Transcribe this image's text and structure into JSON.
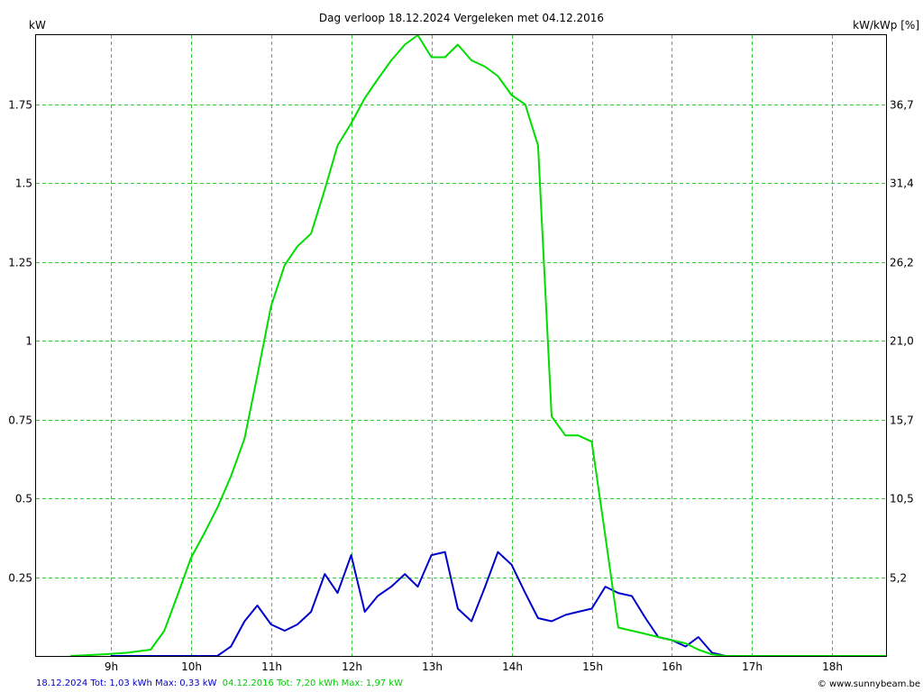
{
  "chart_data": {
    "type": "line",
    "title": "Dag  verloop 18.12.2024   Vergeleken met 04.12.2016",
    "ylabel_left": "kW",
    "ylabel_right": "kW/kWp [%]",
    "x_unit": "hour of day",
    "xlim": [
      8.07,
      18.67
    ],
    "ylim": [
      0,
      1.97
    ],
    "x_ticks": [
      9,
      10,
      11,
      12,
      13,
      14,
      15,
      16,
      17,
      18
    ],
    "x_tick_labels": [
      "9h",
      "10h",
      "11h",
      "12h",
      "13h",
      "14h",
      "15h",
      "16h",
      "17h",
      "18h"
    ],
    "y_ticks_left": [
      0.25,
      0.5,
      0.75,
      1,
      1.25,
      1.5,
      1.75
    ],
    "y_tick_labels_left": [
      "0.25",
      "0.5",
      "0.75",
      "1",
      "1.25",
      "1.5",
      "1.75"
    ],
    "y_tick_labels_right": [
      "5,2",
      "10,5",
      "15,7",
      "21,0",
      "26,2",
      "31,4",
      "36,7"
    ],
    "grid": true,
    "grid_color": "#33cc33",
    "series": [
      {
        "color": "#0000cc",
        "x": [
          9.0,
          9.17,
          9.33,
          9.5,
          9.67,
          9.83,
          10.0,
          10.17,
          10.33,
          10.5,
          10.67,
          10.83,
          11.0,
          11.17,
          11.33,
          11.5,
          11.67,
          11.83,
          12.0,
          12.17,
          12.33,
          12.5,
          12.67,
          12.83,
          13.0,
          13.17,
          13.33,
          13.5,
          13.67,
          13.83,
          14.0,
          14.17,
          14.33,
          14.5,
          14.67,
          14.83,
          15.0,
          15.17,
          15.33,
          15.5,
          15.67,
          15.83,
          16.0,
          16.17,
          16.33,
          16.5,
          16.67
        ],
        "y": [
          0,
          0,
          0,
          0,
          0,
          0,
          0,
          0,
          0,
          0.03,
          0.11,
          0.16,
          0.1,
          0.08,
          0.1,
          0.14,
          0.26,
          0.2,
          0.32,
          0.14,
          0.19,
          0.22,
          0.26,
          0.22,
          0.32,
          0.33,
          0.15,
          0.11,
          0.22,
          0.33,
          0.29,
          0.2,
          0.12,
          0.11,
          0.13,
          0.14,
          0.15,
          0.22,
          0.2,
          0.19,
          0.12,
          0.06,
          0.05,
          0.03,
          0.06,
          0.01,
          0
        ]
      },
      {
        "color": "#00dd00",
        "x": [
          8.5,
          8.9,
          9.2,
          9.5,
          9.67,
          9.83,
          10.0,
          10.17,
          10.33,
          10.5,
          10.67,
          10.83,
          11.0,
          11.17,
          11.33,
          11.5,
          11.67,
          11.83,
          12.0,
          12.17,
          12.33,
          12.5,
          12.67,
          12.83,
          13.0,
          13.17,
          13.33,
          13.5,
          13.67,
          13.83,
          14.0,
          14.17,
          14.33,
          14.5,
          14.67,
          14.83,
          15.0,
          15.17,
          15.33,
          15.5,
          15.67,
          15.83,
          16.0,
          16.17,
          16.33,
          16.5,
          16.67,
          17.0,
          18.67
        ],
        "y": [
          0,
          0.005,
          0.01,
          0.02,
          0.08,
          0.19,
          0.31,
          0.39,
          0.47,
          0.57,
          0.69,
          0.89,
          1.11,
          1.24,
          1.3,
          1.34,
          1.48,
          1.62,
          1.69,
          1.77,
          1.83,
          1.89,
          1.94,
          1.97,
          1.9,
          1.9,
          1.94,
          1.89,
          1.87,
          1.84,
          1.78,
          1.75,
          1.62,
          0.76,
          0.7,
          0.7,
          0.68,
          0.38,
          0.09,
          0.08,
          0.07,
          0.06,
          0.05,
          0.04,
          0.02,
          0.005,
          0,
          0,
          0
        ]
      }
    ],
    "footer_left": [
      {
        "text": "18.12.2024 Tot: 1,03 kWh Max: 0,33 kW",
        "color": "#0000cc"
      },
      {
        "text": "04.12.2016 Tot: 7,20 kWh Max: 1,97 kW",
        "color": "#00cc00"
      }
    ],
    "footer_right": "© www.sunnybeam.be"
  }
}
